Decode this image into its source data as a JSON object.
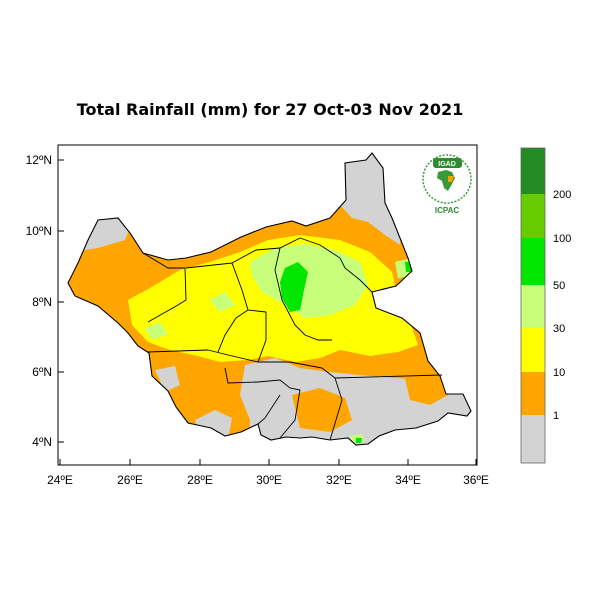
{
  "map": {
    "title": "Total Rainfall (mm) for 27 Oct-03 Nov 2021",
    "lat_ticks": [
      "12ºN",
      "10ºN",
      "8ºN",
      "6ºN",
      "4ºN"
    ],
    "lon_ticks": [
      "24ºE",
      "26ºE",
      "28ºE",
      "30ºE",
      "32ºE",
      "34ºE",
      "36ºE"
    ],
    "extent": {
      "lon": [
        24,
        36
      ],
      "lat": [
        3.4,
        12.4
      ]
    }
  },
  "legend": {
    "unit": "mm",
    "bins": [
      {
        "label": "",
        "color": "#d3d3d3"
      },
      {
        "label": "1",
        "color": "#ffa500"
      },
      {
        "label": "10",
        "color": "#ffff00"
      },
      {
        "label": "30",
        "color": "#c8ff7a"
      },
      {
        "label": "50",
        "color": "#00e600"
      },
      {
        "label": "100",
        "color": "#66cc00"
      },
      {
        "label": "200",
        "color": "#228b22"
      }
    ],
    "boundary_labels": [
      "1",
      "10",
      "30",
      "50",
      "100",
      "200"
    ]
  },
  "logo": {
    "top_text": "IGAD",
    "bottom_text": "ICPAC"
  },
  "colors": {
    "no_rain": "#d3d3d3",
    "low": "#ffa500",
    "moderate": "#ffff00",
    "light_green": "#c8ff7a",
    "bright_green": "#00e600",
    "dark_green": "#228b22"
  }
}
